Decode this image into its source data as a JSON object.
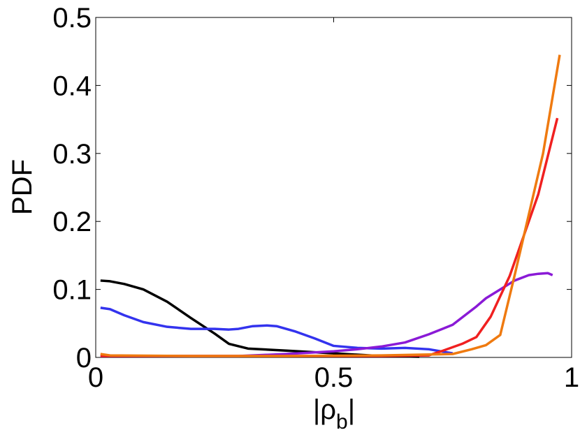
{
  "chart_data": {
    "type": "line",
    "ylabel": "PDF",
    "xlabel": [
      "|ρ",
      "b",
      "|"
    ],
    "xlim": [
      0,
      1
    ],
    "xticks": [
      0,
      0.5,
      1
    ],
    "ylim": [
      0,
      0.5
    ],
    "yticks": [
      0,
      0.1,
      0.2,
      0.3,
      0.4,
      0.5
    ],
    "grid": false,
    "series": [
      {
        "color": "#000000",
        "x": [
          0.01,
          0.03,
          0.06,
          0.1,
          0.15,
          0.2,
          0.25,
          0.28,
          0.32,
          0.4,
          0.5,
          0.6,
          0.68
        ],
        "values": [
          0.113,
          0.112,
          0.108,
          0.1,
          0.082,
          0.058,
          0.035,
          0.02,
          0.013,
          0.01,
          0.006,
          0.002,
          0.001
        ]
      },
      {
        "color": "#3333ee",
        "x": [
          0.01,
          0.03,
          0.06,
          0.1,
          0.15,
          0.2,
          0.25,
          0.28,
          0.3,
          0.33,
          0.36,
          0.38,
          0.42,
          0.46,
          0.5,
          0.55,
          0.6,
          0.65,
          0.7,
          0.75
        ],
        "values": [
          0.073,
          0.071,
          0.062,
          0.052,
          0.045,
          0.042,
          0.042,
          0.041,
          0.042,
          0.046,
          0.047,
          0.046,
          0.038,
          0.028,
          0.017,
          0.014,
          0.013,
          0.014,
          0.012,
          0.006
        ]
      },
      {
        "color": "#8a1ad6",
        "x": [
          0.01,
          0.1,
          0.2,
          0.3,
          0.4,
          0.5,
          0.55,
          0.6,
          0.65,
          0.7,
          0.75,
          0.8,
          0.82,
          0.85,
          0.88,
          0.91,
          0.93,
          0.95,
          0.96
        ],
        "values": [
          0.002,
          0.002,
          0.002,
          0.002,
          0.005,
          0.009,
          0.012,
          0.016,
          0.022,
          0.034,
          0.048,
          0.075,
          0.087,
          0.1,
          0.113,
          0.121,
          0.123,
          0.124,
          0.121
        ]
      },
      {
        "color": "#f02020",
        "x": [
          0.01,
          0.2,
          0.4,
          0.6,
          0.7,
          0.73,
          0.77,
          0.8,
          0.83,
          0.87,
          0.9,
          0.93,
          0.97
        ],
        "values": [
          0.002,
          0.002,
          0.002,
          0.002,
          0.003,
          0.01,
          0.02,
          0.03,
          0.06,
          0.12,
          0.18,
          0.24,
          0.352
        ]
      },
      {
        "color": "#ef7a10",
        "x": [
          0.01,
          0.03,
          0.2,
          0.4,
          0.6,
          0.75,
          0.79,
          0.82,
          0.85,
          0.88,
          0.91,
          0.94,
          0.975
        ],
        "values": [
          0.005,
          0.003,
          0.002,
          0.002,
          0.003,
          0.005,
          0.012,
          0.018,
          0.033,
          0.12,
          0.21,
          0.3,
          0.445
        ]
      }
    ]
  }
}
